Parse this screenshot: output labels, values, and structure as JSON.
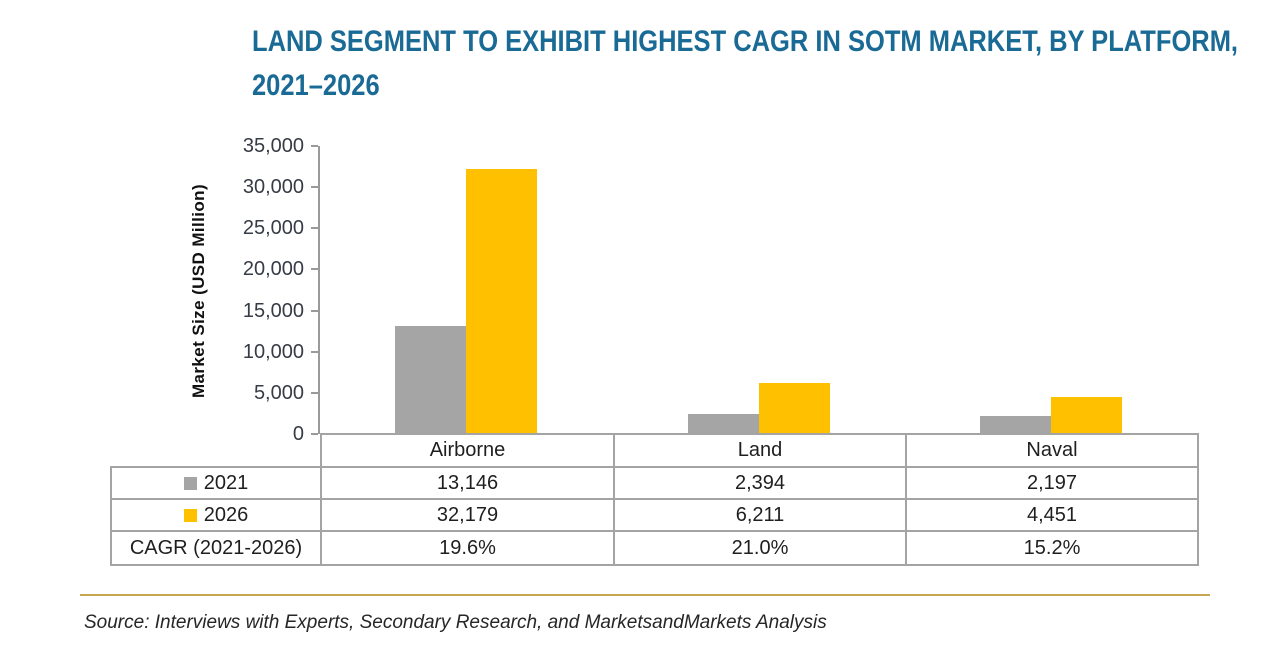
{
  "title": {
    "line1": "LAND SEGMENT TO EXHIBIT HIGHEST CAGR IN SOTM MARKET, BY PLATFORM,",
    "line2": "2021–2026"
  },
  "chart_data": {
    "type": "bar",
    "title": "LAND SEGMENT TO EXHIBIT HIGHEST CAGR IN SOTM MARKET, BY PLATFORM, 2021–2026",
    "categories": [
      "Airborne",
      "Land",
      "Naval"
    ],
    "series": [
      {
        "name": "2021",
        "color": "#A5A5A5",
        "values": [
          13146,
          2394,
          2197
        ]
      },
      {
        "name": "2026",
        "color": "#FFC000",
        "values": [
          32179,
          6211,
          4451
        ]
      }
    ],
    "cagr_row": {
      "label": "CAGR (2021-2026)",
      "values": [
        "19.6%",
        "21.0%",
        "15.2%"
      ]
    },
    "xlabel": "",
    "ylabel": "Market Size (USD Million)",
    "ylim": [
      0,
      35000
    ],
    "ytick_step": 5000,
    "ytick_labels": [
      "0",
      "5,000",
      "10,000",
      "15,000",
      "20,000",
      "25,000",
      "30,000",
      "35,000"
    ],
    "grid": false,
    "legend_position": "table-left-column"
  },
  "table": {
    "header": [
      "Airborne",
      "Land",
      "Naval"
    ],
    "rows": [
      {
        "label": "2021",
        "values": [
          "13,146",
          "2,394",
          "2,197"
        ]
      },
      {
        "label": "2026",
        "values": [
          "32,179",
          "6,211",
          "4,451"
        ]
      },
      {
        "label": "CAGR (2021-2026)",
        "values": [
          "19.6%",
          "21.0%",
          "15.2%"
        ]
      }
    ]
  },
  "source": "Source: Interviews with Experts, Secondary Research, and MarketsandMarkets Analysis",
  "colors": {
    "title_text": "#1A6A96",
    "series_2021": "#A5A5A5",
    "series_2026": "#FFC000",
    "axis_line": "#9A9A9A",
    "table_border": "#A4A4A4",
    "divider_gold": "#C6A64F"
  }
}
